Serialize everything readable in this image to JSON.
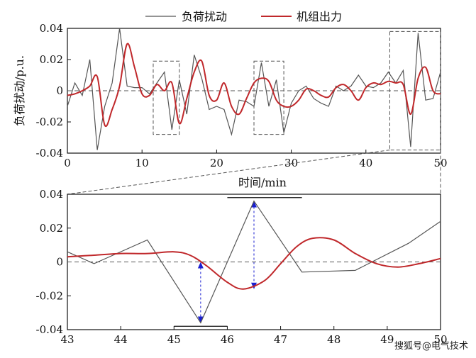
{
  "colors": {
    "disturbance": "#555555",
    "output": "#c0282b",
    "arrow": "#1a1fd1",
    "axis": "#111111",
    "dash": "#555555"
  },
  "legend": {
    "disturbance": "负荷扰动",
    "output": "机组出力"
  },
  "watermark": "搜狐号@电气技术",
  "chart_data": [
    {
      "type": "line",
      "ylabel": "负荷扰动/p.u.",
      "xlabel": "时间/min",
      "xlim": [
        0,
        50
      ],
      "ylim": [
        -0.04,
        0.04
      ],
      "xticks": [
        "0",
        "10",
        "20",
        "30",
        "40",
        "50"
      ],
      "xtick_values": [
        0,
        10,
        20,
        30,
        40,
        50
      ],
      "yticks": [
        "0.04",
        "0.02",
        "0",
        "-0.02",
        "-0.04"
      ],
      "ytick_values": [
        0.04,
        0.02,
        0,
        -0.02,
        -0.04
      ],
      "series": [
        {
          "name": "负荷扰动",
          "x": [
            0,
            1,
            2,
            3,
            4,
            5,
            6,
            7,
            8,
            9,
            10,
            11,
            12,
            13,
            14,
            15,
            16,
            17,
            18,
            19,
            20,
            21,
            22,
            23,
            24,
            25,
            26,
            27,
            28,
            29,
            30,
            31,
            32,
            33,
            34,
            35,
            36,
            37,
            38,
            39,
            40,
            41,
            42,
            43,
            44,
            45,
            46,
            47,
            48,
            49,
            50
          ],
          "y": [
            -0.01,
            0.005,
            -0.003,
            0.02,
            -0.038,
            -0.01,
            0.005,
            0.04,
            0.003,
            0.002,
            0.002,
            -0.002,
            0.005,
            0.012,
            -0.025,
            0.007,
            -0.015,
            0.023,
            0.008,
            -0.012,
            -0.01,
            -0.012,
            -0.028,
            -0.006,
            -0.007,
            -0.01,
            0.018,
            -0.01,
            0.007,
            -0.027,
            -0.008,
            0.0,
            0.003,
            -0.005,
            -0.008,
            -0.01,
            0.003,
            0.0,
            0.003,
            0.01,
            0.003,
            0.002,
            0.005,
            0.012,
            0.005,
            0.013,
            -0.036,
            0.037,
            -0.006,
            -0.005,
            0.012
          ]
        },
        {
          "name": "机组出力",
          "x": [
            0,
            1,
            2,
            3,
            4,
            5,
            6,
            7,
            8,
            9,
            10,
            11,
            12,
            13,
            14,
            15,
            16,
            17,
            18,
            19,
            20,
            21,
            22,
            23,
            24,
            25,
            26,
            27,
            28,
            29,
            30,
            31,
            32,
            33,
            34,
            35,
            36,
            37,
            38,
            39,
            40,
            41,
            42,
            43,
            44,
            45,
            46,
            47,
            48,
            49,
            50
          ],
          "y": [
            -0.003,
            -0.002,
            0.0,
            0.003,
            0.009,
            -0.022,
            -0.012,
            0.003,
            0.03,
            0.015,
            -0.002,
            -0.003,
            0.004,
            0.0,
            0.005,
            -0.021,
            -0.005,
            0.012,
            0.019,
            -0.003,
            -0.006,
            0.005,
            -0.01,
            -0.015,
            -0.005,
            0.005,
            0.008,
            0.006,
            -0.006,
            -0.01,
            -0.01,
            -0.006,
            0.001,
            0.0,
            -0.003,
            -0.004,
            0.002,
            0.004,
            0.0,
            -0.006,
            0.002,
            0.005,
            0.004,
            0.006,
            0.005,
            0.004,
            -0.015,
            0.008,
            0.015,
            0.0,
            -0.002
          ]
        }
      ],
      "annotations": [
        {
          "type": "dashed-box",
          "x": [
            11.5,
            15
          ],
          "y": [
            -0.028,
            0.019
          ]
        },
        {
          "type": "dashed-box",
          "x": [
            25,
            29
          ],
          "y": [
            -0.028,
            0.019
          ]
        },
        {
          "type": "dashed-box",
          "x": [
            43.2,
            50
          ],
          "y": [
            -0.038,
            0.038
          ]
        }
      ]
    },
    {
      "type": "line",
      "xlim": [
        43,
        50
      ],
      "ylim": [
        -0.04,
        0.04
      ],
      "xticks": [
        "43",
        "44",
        "45",
        "46",
        "47",
        "48",
        "49",
        "50"
      ],
      "xtick_values": [
        43,
        44,
        45,
        46,
        47,
        48,
        49,
        50
      ],
      "yticks": [
        "0.04",
        "0.02",
        "0",
        "-0.02",
        "-0.04"
      ],
      "ytick_values": [
        0.04,
        0.02,
        0,
        -0.02,
        -0.04
      ],
      "series": [
        {
          "name": "负荷扰动",
          "x": [
            43,
            43.5,
            44.5,
            45.5,
            46.5,
            47.4,
            48.4,
            49.4,
            50
          ],
          "y": [
            0.006,
            -0.001,
            0.013,
            -0.036,
            0.036,
            -0.006,
            -0.005,
            0.011,
            0.024
          ]
        },
        {
          "name": "机组出力",
          "x": [
            43,
            43.5,
            44,
            44.5,
            45,
            45.3,
            45.6,
            46,
            46.3,
            46.7,
            47,
            47.3,
            47.6,
            48,
            48.4,
            48.8,
            49.2,
            49.6,
            50
          ],
          "y": [
            0.003,
            0.004,
            0.005,
            0.005,
            0.006,
            0.004,
            -0.002,
            -0.012,
            -0.016,
            -0.011,
            -0.001,
            0.009,
            0.014,
            0.013,
            0.005,
            -0.001,
            -0.003,
            -0.001,
            0.002
          ]
        }
      ],
      "annotations": [
        {
          "type": "double-arrow",
          "x": 45.5,
          "y": [
            -0.036,
            0.0
          ]
        },
        {
          "type": "double-arrow",
          "x": 46.5,
          "y": [
            -0.016,
            0.036
          ]
        },
        {
          "type": "hline",
          "x": [
            45.0,
            46.0
          ],
          "y": -0.038
        },
        {
          "type": "hline",
          "x": [
            46.0,
            47.4
          ],
          "y": 0.038
        }
      ]
    }
  ]
}
